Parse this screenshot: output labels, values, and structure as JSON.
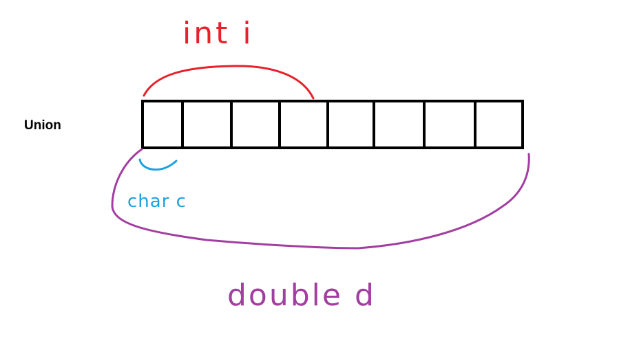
{
  "union_label": "Union",
  "memory": {
    "cell_count": 8
  },
  "members": {
    "int": {
      "label": "int i",
      "color": "#e8202a"
    },
    "char": {
      "label": "char c",
      "color": "#1ba1e2"
    },
    "double": {
      "label": "double d",
      "color": "#a33ea1"
    }
  },
  "colors": {
    "cells": "#000000",
    "background": "#ffffff"
  }
}
